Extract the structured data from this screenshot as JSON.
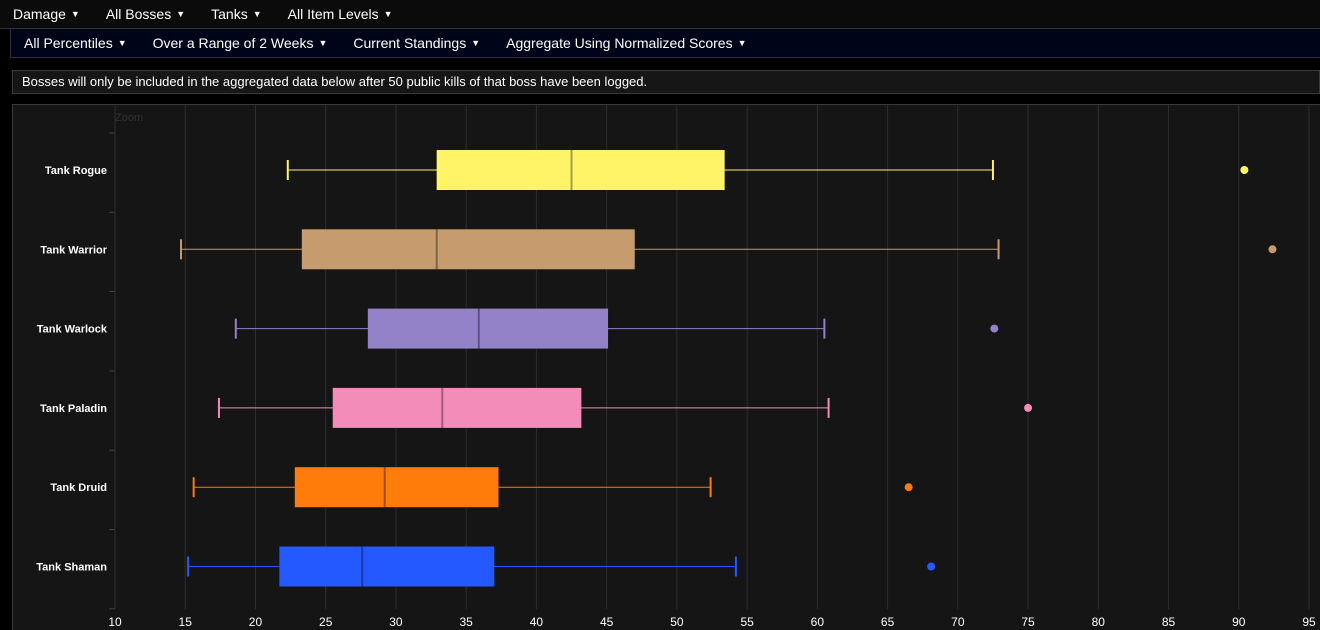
{
  "menu_primary": [
    {
      "label": "Damage"
    },
    {
      "label": "All Bosses"
    },
    {
      "label": "Tanks"
    },
    {
      "label": "All Item Levels"
    }
  ],
  "menu_secondary": [
    {
      "label": "All Percentiles"
    },
    {
      "label": "Over a Range of 2 Weeks"
    },
    {
      "label": "Current Standings"
    },
    {
      "label": "Aggregate Using Normalized Scores"
    }
  ],
  "caret_glyph": "▼",
  "notice": "Bosses will only be included in the aggregated data below after 50 public kills of that boss have been logged.",
  "zoom_label": "Zoom",
  "chart_data": {
    "type": "boxplot",
    "orientation": "horizontal",
    "xlim": [
      10,
      95
    ],
    "x_ticks": [
      10,
      15,
      20,
      25,
      30,
      35,
      40,
      45,
      50,
      55,
      60,
      65,
      70,
      75,
      80,
      85,
      90,
      95
    ],
    "grid": true,
    "series": [
      {
        "name": "Tank Rogue",
        "color": "#fff468",
        "min": 22.3,
        "q1": 32.9,
        "median": 42.5,
        "q3": 53.4,
        "max": 72.5,
        "outliers": [
          90.4
        ]
      },
      {
        "name": "Tank Warrior",
        "color": "#c69b6d",
        "min": 14.7,
        "q1": 23.3,
        "median": 32.9,
        "q3": 47.0,
        "max": 72.9,
        "outliers": [
          92.4
        ]
      },
      {
        "name": "Tank Warlock",
        "color": "#9482c9",
        "min": 18.6,
        "q1": 28.0,
        "median": 35.9,
        "q3": 45.1,
        "max": 60.5,
        "outliers": [
          72.6
        ]
      },
      {
        "name": "Tank Paladin",
        "color": "#f48cba",
        "min": 17.4,
        "q1": 25.5,
        "median": 33.3,
        "q3": 43.2,
        "max": 60.8,
        "outliers": [
          75.0
        ]
      },
      {
        "name": "Tank Druid",
        "color": "#ff7c0a",
        "min": 15.6,
        "q1": 22.8,
        "median": 29.2,
        "q3": 37.3,
        "max": 52.4,
        "outliers": [
          66.5
        ]
      },
      {
        "name": "Tank Shaman",
        "color": "#2459ff",
        "min": 15.2,
        "q1": 21.7,
        "median": 27.6,
        "q3": 37.0,
        "max": 54.2,
        "outliers": [
          68.1
        ]
      }
    ]
  }
}
